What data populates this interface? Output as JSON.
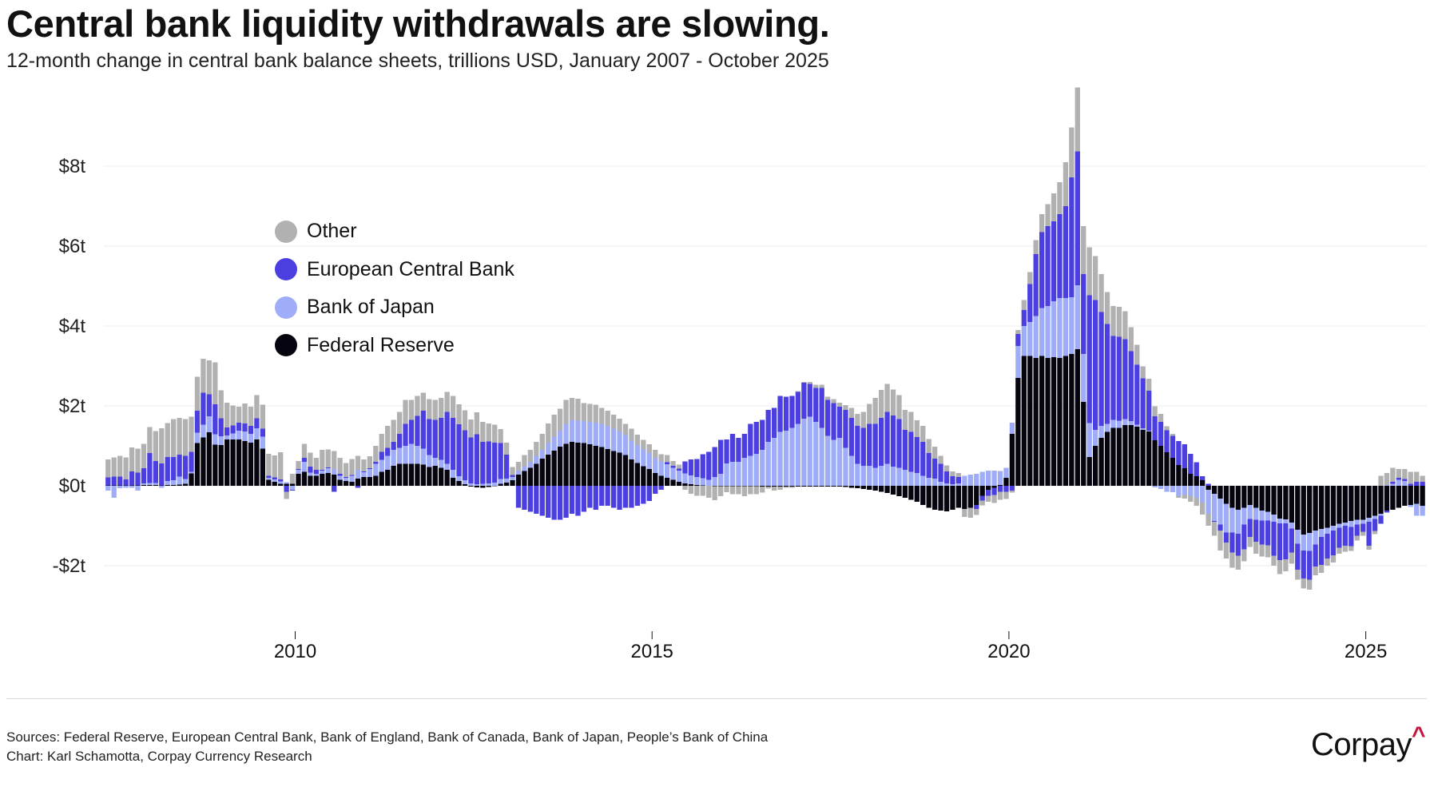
{
  "header": {
    "title": "Central bank liquidity withdrawals are slowing.",
    "subtitle": "12-month change in central bank balance sheets, trillions USD, January 2007 - October 2025"
  },
  "footer": {
    "sources": "Sources: Federal Reserve, European Central Bank, Bank of England, Bank of Canada, Bank of Japan, People’s Bank of China",
    "credit": "Chart: Karl Schamotta, Corpay Currency Research",
    "logo_text": "Corpay",
    "logo_mark": "^",
    "logo_mark_color": "#c4163c"
  },
  "chart_data": {
    "type": "bar",
    "stacked": true,
    "title": "Central bank liquidity withdrawals are slowing.",
    "subtitle": "12-month change in central bank balance sheets, trillions USD, January 2007 - October 2025",
    "xlabel": "",
    "ylabel": "",
    "ylim": [
      -2.4,
      9.5
    ],
    "yticks": [
      8,
      6,
      4,
      2,
      0,
      -2
    ],
    "ytick_labels": [
      "$8t",
      "$6t",
      "$4t",
      "$2t",
      "$0t",
      "-$2t"
    ],
    "xticks": [
      "2010",
      "2015",
      "2020",
      "2025"
    ],
    "grid": true,
    "legend_position": "upper-left",
    "legend": [
      {
        "name": "Other",
        "color": "#b1b1b1"
      },
      {
        "name": "European Central Bank",
        "color": "#4b3fe2"
      },
      {
        "name": "Bank of Japan",
        "color": "#9fadf8"
      },
      {
        "name": "Federal Reserve",
        "color": "#05040f"
      }
    ],
    "frequency": "monthly",
    "first_visible_month": "2007-05",
    "last_month": "2025-10",
    "stack_order": [
      "Federal Reserve",
      "Bank of Japan",
      "European Central Bank",
      "Other"
    ],
    "series": [
      {
        "name": "Federal Reserve",
        "color": "#05040f",
        "values": [
          0.01,
          0.01,
          0.01,
          0.01,
          0.01,
          0.01,
          0.02,
          0.02,
          0.02,
          0.01,
          0.02,
          0.02,
          0.03,
          0.05,
          0.31,
          1.07,
          1.21,
          1.34,
          1.03,
          1.02,
          1.16,
          1.16,
          1.16,
          1.12,
          1.08,
          1.16,
          0.93,
          0.15,
          0.1,
          0.05,
          0.05,
          0.05,
          0.3,
          0.35,
          0.25,
          0.25,
          0.3,
          0.32,
          0.28,
          0.15,
          0.12,
          0.1,
          0.18,
          0.22,
          0.22,
          0.25,
          0.35,
          0.4,
          0.5,
          0.55,
          0.55,
          0.55,
          0.55,
          0.53,
          0.47,
          0.5,
          0.45,
          0.4,
          0.2,
          0.12,
          0.04,
          -0.02,
          -0.04,
          -0.05,
          -0.03,
          -0.01,
          0.05,
          0.08,
          0.14,
          0.28,
          0.37,
          0.45,
          0.55,
          0.68,
          0.78,
          0.88,
          0.98,
          1.05,
          1.1,
          1.08,
          1.07,
          1.04,
          1.0,
          0.97,
          0.92,
          0.87,
          0.83,
          0.77,
          0.66,
          0.57,
          0.49,
          0.42,
          0.32,
          0.25,
          0.2,
          0.15,
          0.1,
          0.06,
          0.04,
          0.02,
          0.01,
          0.0,
          -0.01,
          -0.01,
          -0.01,
          -0.01,
          -0.01,
          -0.01,
          -0.01,
          -0.01,
          -0.02,
          -0.02,
          -0.02,
          -0.02,
          -0.02,
          -0.02,
          -0.02,
          -0.02,
          -0.02,
          -0.02,
          -0.02,
          -0.02,
          -0.02,
          -0.02,
          -0.03,
          -0.05,
          -0.06,
          -0.08,
          -0.1,
          -0.12,
          -0.15,
          -0.18,
          -0.22,
          -0.26,
          -0.3,
          -0.35,
          -0.4,
          -0.48,
          -0.55,
          -0.6,
          -0.62,
          -0.64,
          -0.6,
          -0.55,
          -0.58,
          -0.55,
          -0.48,
          -0.25,
          -0.1,
          -0.05,
          0.02,
          0.2,
          1.3,
          2.7,
          3.25,
          3.25,
          3.2,
          3.25,
          3.2,
          3.22,
          3.2,
          3.25,
          3.3,
          3.42,
          2.1,
          0.72,
          1.0,
          1.2,
          1.35,
          1.45,
          1.45,
          1.52,
          1.52,
          1.48,
          1.4,
          1.36,
          1.14,
          1.0,
          0.84,
          0.7,
          0.52,
          0.44,
          0.3,
          0.24,
          0.14,
          -0.1,
          -0.2,
          -0.32,
          -0.45,
          -0.55,
          -0.6,
          -0.55,
          -0.48,
          -0.55,
          -0.62,
          -0.65,
          -0.72,
          -0.82,
          -0.84,
          -0.92,
          -1.1,
          -1.22,
          -1.18,
          -1.12,
          -1.08,
          -1.05,
          -1.0,
          -0.95,
          -0.92,
          -0.88,
          -0.85,
          -0.85,
          -0.8,
          -0.75,
          -0.7,
          -0.62,
          -0.6,
          -0.55,
          -0.5,
          -0.48,
          -0.45,
          -0.5
        ]
      },
      {
        "name": "Bank of Japan",
        "color": "#9fadf8",
        "values": [
          -0.12,
          -0.3,
          -0.06,
          -0.05,
          -0.05,
          -0.12,
          0.04,
          0.05,
          0.05,
          -0.05,
          0.1,
          0.12,
          0.2,
          0.12,
          0.04,
          0.26,
          0.32,
          0.4,
          0.26,
          0.22,
          0.1,
          0.15,
          0.22,
          0.24,
          0.22,
          0.28,
          0.3,
          0.05,
          0.06,
          0.06,
          0.04,
          -0.1,
          0.1,
          0.25,
          0.08,
          0.05,
          0.08,
          0.12,
          0.14,
          0.1,
          0.08,
          0.15,
          0.22,
          0.12,
          0.2,
          0.3,
          0.3,
          0.35,
          0.4,
          0.4,
          0.45,
          0.5,
          0.45,
          0.4,
          0.3,
          0.2,
          0.2,
          0.15,
          0.2,
          0.12,
          0.1,
          0.06,
          0.04,
          0.05,
          0.06,
          0.08,
          0.12,
          0.1,
          0.08,
          0.1,
          0.12,
          0.15,
          0.2,
          0.22,
          0.3,
          0.35,
          0.4,
          0.5,
          0.55,
          0.55,
          0.55,
          0.56,
          0.58,
          0.58,
          0.58,
          0.56,
          0.53,
          0.5,
          0.47,
          0.45,
          0.42,
          0.4,
          0.38,
          0.36,
          0.34,
          0.3,
          0.28,
          0.25,
          0.22,
          0.2,
          0.18,
          0.15,
          0.22,
          0.3,
          0.56,
          0.6,
          0.6,
          0.7,
          0.75,
          0.8,
          0.9,
          1.1,
          1.2,
          1.35,
          1.38,
          1.45,
          1.55,
          1.68,
          1.73,
          1.6,
          1.45,
          1.25,
          1.15,
          1.2,
          0.95,
          0.75,
          0.55,
          0.5,
          0.5,
          0.45,
          0.5,
          0.55,
          0.48,
          0.45,
          0.4,
          0.35,
          0.32,
          0.25,
          0.2,
          0.18,
          0.1,
          0.06,
          0.04,
          0.06,
          0.25,
          0.28,
          0.3,
          0.35,
          0.38,
          0.38,
          0.35,
          0.25,
          0.28,
          0.8,
          0.75,
          0.85,
          1.05,
          1.2,
          1.3,
          1.4,
          1.5,
          1.45,
          1.42,
          1.6,
          1.2,
          0.85,
          0.4,
          0.3,
          0.2,
          0.2,
          0.18,
          0.15,
          0.1,
          0.05,
          0.04,
          0.02,
          -0.04,
          -0.08,
          -0.15,
          -0.16,
          -0.25,
          -0.22,
          -0.25,
          -0.3,
          -0.42,
          -0.6,
          -0.68,
          -0.65,
          -0.72,
          -0.62,
          -0.6,
          -0.42,
          -0.35,
          -0.3,
          -0.25,
          -0.22,
          -0.18,
          -0.12,
          -0.1,
          -0.15,
          -0.35,
          -0.4,
          -0.45,
          -0.35,
          -0.2,
          -0.15,
          -0.12,
          -0.1,
          -0.08,
          -0.15,
          -0.12,
          -0.1,
          -0.1,
          -0.08,
          -0.05,
          0.02,
          0.05,
          0.15,
          0.12,
          -0.05,
          -0.3,
          -0.25,
          -0.4
        ]
      },
      {
        "name": "European Central Bank",
        "color": "#4b3fe2",
        "values": [
          0.2,
          0.22,
          0.22,
          0.15,
          0.35,
          0.32,
          0.38,
          0.75,
          0.55,
          0.55,
          0.6,
          0.58,
          0.55,
          0.58,
          0.5,
          0.55,
          0.8,
          0.55,
          0.75,
          0.45,
          0.2,
          0.2,
          0.2,
          0.2,
          0.2,
          0.25,
          0.2,
          0.05,
          0.05,
          0.05,
          -0.15,
          -0.02,
          0.02,
          0.1,
          0.15,
          0.1,
          0.02,
          0.02,
          -0.15,
          0.05,
          0.02,
          0.02,
          -0.05,
          0.02,
          0.02,
          0.05,
          0.2,
          0.2,
          0.2,
          0.35,
          0.55,
          0.6,
          0.75,
          0.95,
          0.9,
          0.95,
          1.05,
          1.3,
          1.3,
          1.3,
          1.25,
          1.15,
          1.25,
          1.05,
          1.05,
          1.0,
          0.9,
          0.6,
          0.05,
          -0.55,
          -0.6,
          -0.65,
          -0.7,
          -0.75,
          -0.8,
          -0.85,
          -0.85,
          -0.8,
          -0.7,
          -0.75,
          -0.65,
          -0.55,
          -0.6,
          -0.5,
          -0.5,
          -0.55,
          -0.6,
          -0.55,
          -0.55,
          -0.5,
          -0.45,
          -0.38,
          -0.2,
          -0.1,
          0.05,
          0.05,
          0.05,
          0.3,
          0.4,
          0.45,
          0.6,
          0.7,
          0.75,
          0.85,
          0.6,
          0.7,
          0.6,
          0.6,
          0.8,
          0.8,
          0.75,
          0.8,
          0.75,
          0.9,
          0.85,
          0.8,
          0.8,
          0.9,
          0.82,
          0.85,
          1.0,
          0.9,
          0.92,
          0.78,
          0.95,
          0.95,
          0.95,
          0.95,
          1.05,
          1.1,
          1.2,
          1.3,
          1.28,
          1.22,
          1.0,
          1.0,
          0.9,
          0.85,
          0.62,
          0.5,
          0.45,
          0.3,
          0.2,
          0.16,
          0.0,
          0.0,
          -0.1,
          -0.12,
          -0.15,
          -0.18,
          -0.15,
          -0.15,
          -0.12,
          0.3,
          0.4,
          0.95,
          1.55,
          1.9,
          2.0,
          2.0,
          2.1,
          2.3,
          3.0,
          3.35,
          2.0,
          3.2,
          3.25,
          2.85,
          2.5,
          2.1,
          2.1,
          2.0,
          1.75,
          1.5,
          1.25,
          1.0,
          0.6,
          0.6,
          0.55,
          0.55,
          0.6,
          0.6,
          0.5,
          0.35,
          0.1,
          0.05,
          -0.02,
          -0.15,
          -0.25,
          -0.5,
          -0.55,
          -0.62,
          -0.45,
          -0.55,
          -0.6,
          -0.62,
          -0.85,
          -0.92,
          -0.9,
          -0.6,
          -0.65,
          -0.7,
          -0.72,
          -0.55,
          -0.7,
          -0.62,
          -0.62,
          -0.5,
          -0.5,
          -0.48,
          -0.28,
          -0.2,
          -0.6,
          -0.3,
          -0.2,
          -0.05,
          0.05,
          0.05,
          0.05,
          0.05,
          0.1,
          0.1,
          0.18
        ]
      },
      {
        "name": "Other",
        "color": "#b1b1b1",
        "values": [
          0.45,
          0.48,
          0.52,
          0.55,
          0.6,
          0.6,
          0.61,
          0.65,
          0.75,
          0.88,
          0.85,
          0.95,
          0.92,
          0.92,
          0.88,
          0.85,
          0.85,
          0.85,
          1.05,
          0.7,
          0.62,
          0.5,
          0.4,
          0.5,
          0.48,
          0.58,
          0.6,
          0.55,
          0.55,
          0.68,
          -0.18,
          0.25,
          0.2,
          0.35,
          0.35,
          0.3,
          0.5,
          0.45,
          0.45,
          0.4,
          0.35,
          0.4,
          0.35,
          0.3,
          0.3,
          0.4,
          0.45,
          0.55,
          0.55,
          0.55,
          0.6,
          0.5,
          0.5,
          0.45,
          0.5,
          0.5,
          0.5,
          0.5,
          0.55,
          0.5,
          0.5,
          0.45,
          0.55,
          0.5,
          0.45,
          0.45,
          0.35,
          0.3,
          0.2,
          0.22,
          0.28,
          0.3,
          0.35,
          0.4,
          0.48,
          0.55,
          0.55,
          0.6,
          0.55,
          0.55,
          0.45,
          0.45,
          0.45,
          0.4,
          0.38,
          0.35,
          0.32,
          0.28,
          0.3,
          0.26,
          0.24,
          0.22,
          0.2,
          0.18,
          0.18,
          0.12,
          0.1,
          -0.1,
          -0.2,
          -0.25,
          -0.25,
          -0.3,
          -0.35,
          -0.25,
          -0.15,
          -0.2,
          -0.2,
          -0.25,
          -0.2,
          -0.2,
          -0.15,
          -0.05,
          -0.1,
          -0.08,
          -0.03,
          -0.03,
          0.02,
          0.02,
          0.05,
          0.08,
          0.08,
          0.08,
          0.1,
          0.1,
          0.12,
          0.25,
          0.3,
          0.4,
          0.5,
          0.65,
          0.7,
          0.7,
          0.65,
          0.6,
          0.5,
          0.5,
          0.42,
          0.4,
          0.35,
          0.3,
          0.2,
          0.15,
          0.12,
          0.1,
          -0.2,
          -0.25,
          -0.15,
          -0.12,
          -0.15,
          -0.2,
          -0.2,
          -0.18,
          -0.05,
          0.1,
          0.25,
          0.3,
          0.35,
          0.45,
          0.55,
          0.7,
          0.8,
          1.1,
          1.25,
          1.6,
          1.2,
          1.2,
          1.1,
          0.95,
          0.8,
          0.75,
          0.75,
          0.7,
          0.6,
          0.5,
          0.3,
          0.3,
          0.25,
          0.2,
          0.1,
          0.05,
          -0.05,
          -0.1,
          -0.15,
          -0.2,
          -0.3,
          -0.3,
          -0.35,
          -0.5,
          -0.4,
          -0.38,
          -0.35,
          -0.3,
          -0.25,
          -0.3,
          -0.3,
          -0.3,
          -0.25,
          -0.35,
          -0.3,
          -0.28,
          -0.25,
          -0.25,
          -0.25,
          -0.22,
          -0.2,
          -0.18,
          -0.18,
          -0.15,
          -0.15,
          -0.12,
          -0.12,
          -0.1,
          -0.1,
          -0.08,
          0.25,
          0.3,
          0.35,
          0.22,
          0.25,
          0.3,
          0.25,
          0.15,
          0.3
        ]
      }
    ]
  }
}
